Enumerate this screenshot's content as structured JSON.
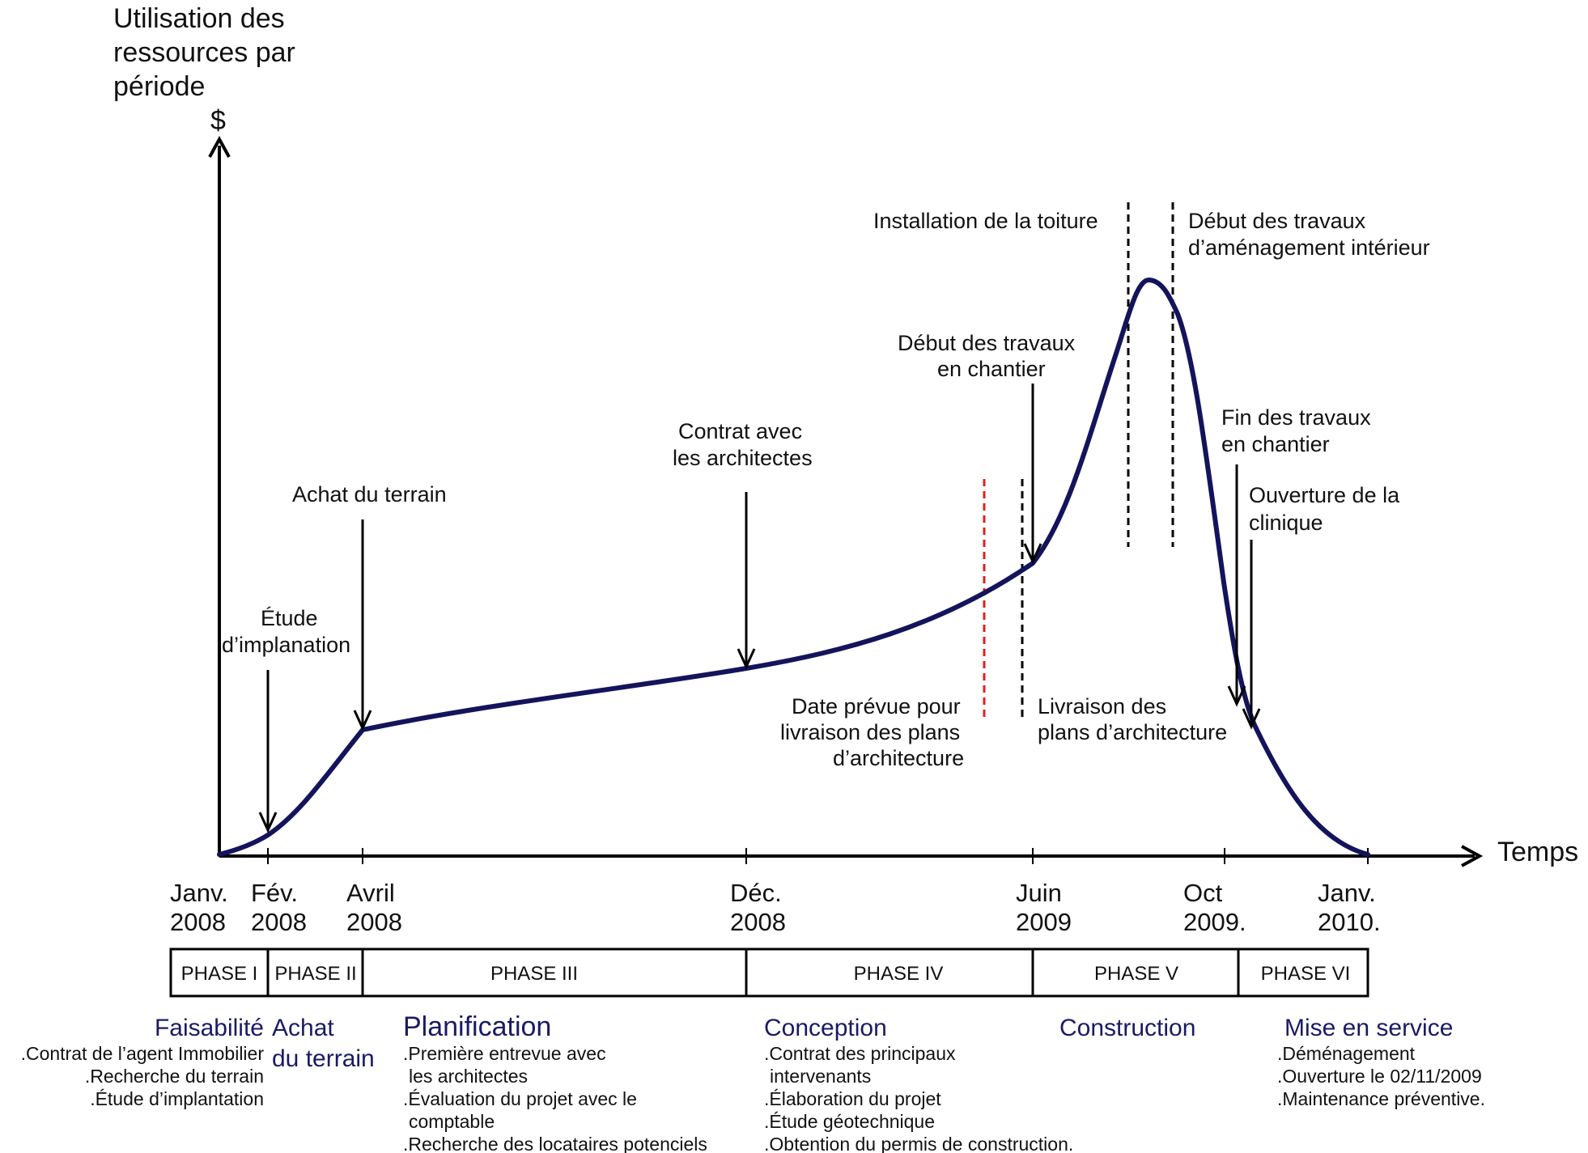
{
  "axes": {
    "y_title_lines": [
      "Utilisation des",
      "ressources par",
      "période"
    ],
    "y_unit": "$",
    "x_title": "Temps"
  },
  "x_ticks": [
    {
      "line1": "Janv.",
      "line2": "2008"
    },
    {
      "line1": "Fév.",
      "line2": "2008"
    },
    {
      "line1": "Avril",
      "line2": "2008"
    },
    {
      "line1": "Déc.",
      "line2": "2008"
    },
    {
      "line1": "Juin",
      "line2": "2009"
    },
    {
      "line1": "Oct",
      "line2": "2009."
    },
    {
      "line1": "Janv.",
      "line2": "2010."
    }
  ],
  "annotations": {
    "etude": [
      "Étude",
      "d’implanation"
    ],
    "achat": [
      "Achat du terrain"
    ],
    "contrat": [
      "Contrat avec",
      "les architectes"
    ],
    "date_prevue": [
      "Date prévue pour",
      "livraison des plans",
      "d’architecture"
    ],
    "livraison": [
      "Livraison des",
      "plans d’architecture"
    ],
    "debut_chantier": [
      "Début des travaux",
      "en chantier"
    ],
    "toiture": [
      "Installation de la toiture"
    ],
    "amenagement": [
      "Début des travaux",
      "d’aménagement intérieur"
    ],
    "fin_chantier": [
      "Fin des travaux",
      "en chantier"
    ],
    "ouverture": [
      "Ouverture de la",
      "clinique"
    ]
  },
  "phases": [
    {
      "label": "PHASE I"
    },
    {
      "label": "PHASE II"
    },
    {
      "label": "PHASE III"
    },
    {
      "label": "PHASE IV"
    },
    {
      "label": "PHASE V"
    },
    {
      "label": "PHASE VI"
    }
  ],
  "phase_details": {
    "faisabilite": {
      "title": "Faisabilité",
      "items": [
        ".Contrat de l’agent Immobilier",
        ".Recherche du terrain",
        ".Étude d’implantation"
      ]
    },
    "achat": {
      "title_lines": [
        "Achat",
        "du terrain"
      ]
    },
    "planification": {
      "title": "Planification",
      "items": [
        ".Première entrevue avec",
        "les architectes",
        ".Évaluation du projet avec le",
        "comptable",
        ".Recherche des locataires potenciels"
      ]
    },
    "conception": {
      "title": "Conception",
      "items": [
        ".Contrat des principaux",
        "intervenants",
        ".Élaboration du projet",
        ".Étude géotechnique",
        ".Obtention du permis de construction."
      ]
    },
    "construction": {
      "title": "Construction"
    },
    "mise_en_service": {
      "title": "Mise en service",
      "items": [
        ".Déménagement",
        ".Ouverture le 02/11/2009",
        ".Maintenance préventive."
      ]
    }
  },
  "colors": {
    "curve": "#14145c",
    "axis": "#000000",
    "planned_line": "#e02020",
    "title_text": "#1a1a66"
  }
}
